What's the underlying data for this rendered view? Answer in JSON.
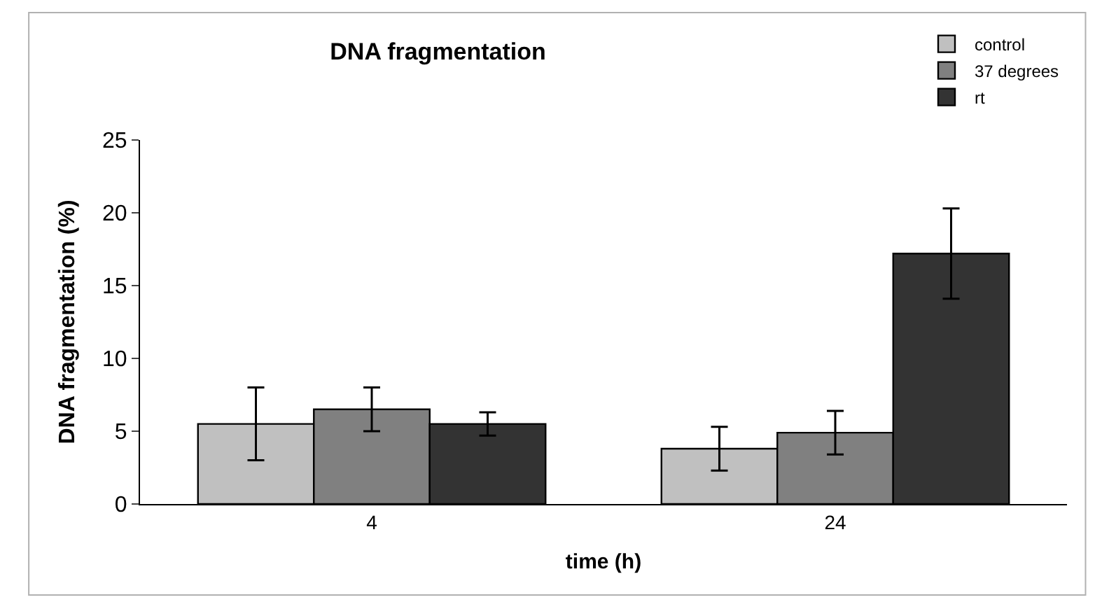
{
  "chart_data": {
    "type": "bar",
    "title": "DNA fragmentation",
    "xlabel": "time (h)",
    "ylabel": "DNA fragmentation (%)",
    "categories": [
      "4",
      "24"
    ],
    "series": [
      {
        "name": "control",
        "color": "#c0c0c0",
        "values": [
          5.5,
          3.8
        ],
        "errors": [
          2.5,
          1.5
        ]
      },
      {
        "name": "37 degrees",
        "color": "#808080",
        "values": [
          6.5,
          4.9
        ],
        "errors": [
          1.5,
          1.5
        ]
      },
      {
        "name": "rt",
        "color": "#333333",
        "values": [
          5.5,
          17.2
        ],
        "errors": [
          0.8,
          3.1
        ]
      }
    ],
    "ylim": [
      0,
      25
    ],
    "yticks": [
      0,
      5,
      10,
      15,
      20,
      25
    ],
    "grid": false,
    "legend": "top right"
  }
}
